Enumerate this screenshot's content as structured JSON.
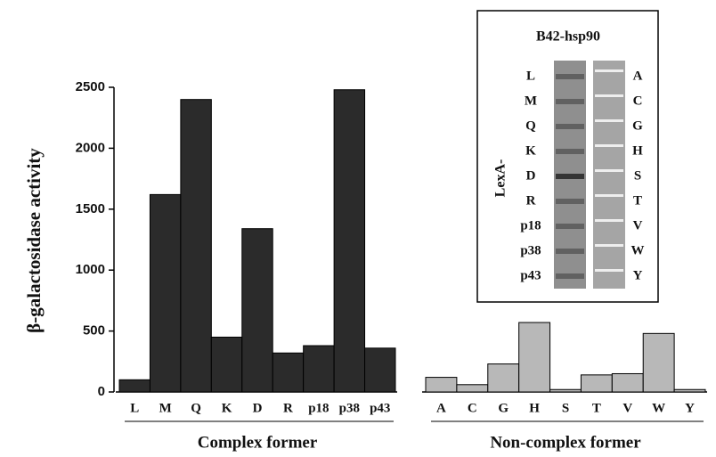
{
  "chart_data": {
    "type": "bar",
    "ylabel": "β-galactosidase activity",
    "ylim": [
      0,
      2500
    ],
    "yticks": [
      0,
      500,
      1000,
      1500,
      2000,
      2500
    ],
    "groups": [
      {
        "name": "Complex former",
        "color": "#2b2b2b",
        "categories": [
          "L",
          "M",
          "Q",
          "K",
          "D",
          "R",
          "p18",
          "p38",
          "p43"
        ],
        "values": [
          100,
          1620,
          2400,
          450,
          1340,
          320,
          380,
          2480,
          360
        ]
      },
      {
        "name": "Non-complex former",
        "color": "#b8b8b8",
        "categories": [
          "A",
          "C",
          "G",
          "H",
          "S",
          "T",
          "V",
          "W",
          "Y"
        ],
        "values": [
          120,
          60,
          230,
          570,
          20,
          140,
          150,
          480,
          20
        ]
      }
    ]
  },
  "inset": {
    "title": "B42-hsp90",
    "side_label": "LexA-",
    "left_labels": [
      "L",
      "M",
      "Q",
      "K",
      "D",
      "R",
      "p18",
      "p38",
      "p43"
    ],
    "right_labels": [
      "A",
      "C",
      "G",
      "H",
      "S",
      "T",
      "V",
      "W",
      "Y"
    ]
  }
}
